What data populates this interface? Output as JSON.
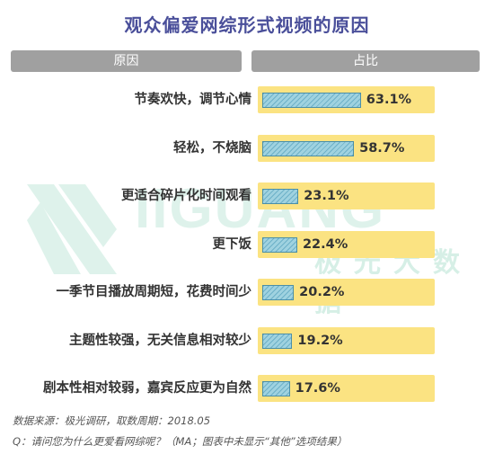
{
  "title": "观众偏爱网综形式视频的原因",
  "header": {
    "left": "原因",
    "right": "占比"
  },
  "watermark": {
    "text": "IIGUANG",
    "subtext": "极光大数据"
  },
  "footer": {
    "source": "数据来源：极光调研，取数周期：2018.05",
    "question": "Q：请问您为什么更爱看网综呢？（MA；图表中未显示“其他”选项结果）"
  },
  "colors": {
    "title": "#4a4f9a",
    "track": "#fbe382",
    "bar": "#9fd2e0",
    "bar_border": "#4b8fa8",
    "header_bg": "#a0a0a0"
  },
  "chart_data": {
    "type": "bar",
    "orientation": "horizontal",
    "title": "观众偏爱网综形式视频的原因",
    "category_header": "原因",
    "value_header": "占比",
    "categories": [
      "节奏欢快，调节心情",
      "轻松，不烧脑",
      "更适合碎片化时间观看",
      "更下饭",
      "一季节目播放周期短，花费时间少",
      "主题性较强，无关信息相对较少",
      "剧本性相对较弱，嘉宾反应更为自然"
    ],
    "values": [
      63.1,
      58.7,
      23.1,
      22.4,
      20.2,
      19.2,
      17.6
    ],
    "labels": [
      "63.1%",
      "58.7%",
      "23.1%",
      "22.4%",
      "20.2%",
      "19.2%",
      "17.6%"
    ],
    "unit": "%",
    "xlim": [
      0,
      100
    ],
    "grid": false
  }
}
